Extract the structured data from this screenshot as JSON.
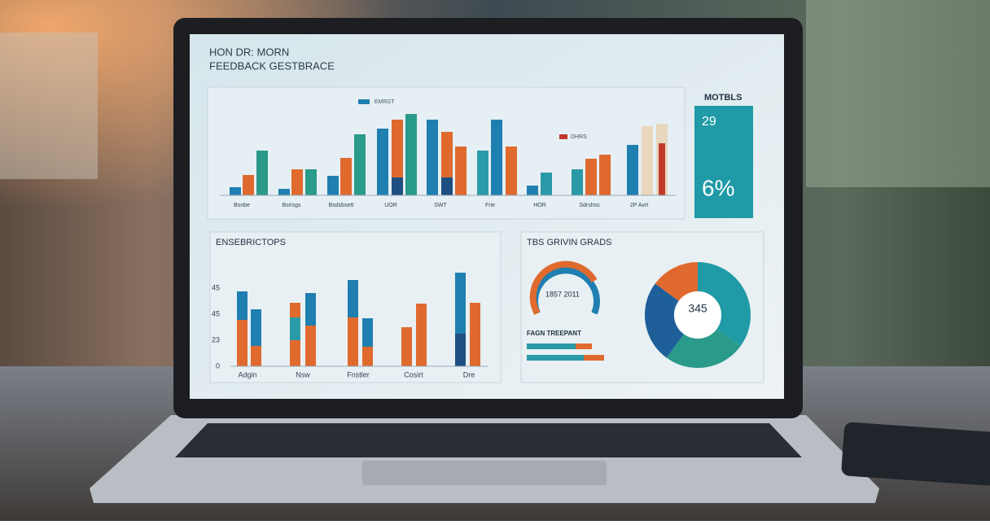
{
  "header": {
    "title": "HON DR: MORN",
    "subtitle": "FEEDBACK GESTBRACE"
  },
  "top_panel": {
    "legend": [
      "EMRST",
      "DHRS"
    ],
    "categories": [
      "Bsnbe",
      "Bsrisgs",
      "Bsdsbsett",
      "UOR",
      "SWT",
      "Frie",
      "HOR",
      "Sdrshss",
      "2P Avrt"
    ]
  },
  "stat_card": {
    "title": "MOTBLS",
    "value": "29",
    "big_value": "6%"
  },
  "left_panel": {
    "title": "ENSEBRICTOPS",
    "y_labels": [
      "45",
      "45",
      "23",
      "0"
    ],
    "categories": [
      "Adgin",
      "Nsw",
      "Fnstler",
      "Cosirt",
      "Dre"
    ]
  },
  "right_panel": {
    "title": "TBS GRIVIN GRADS",
    "gauge_label": "1857 2011",
    "section": "FAGN TREEPANT",
    "donut_value": "345"
  }
}
